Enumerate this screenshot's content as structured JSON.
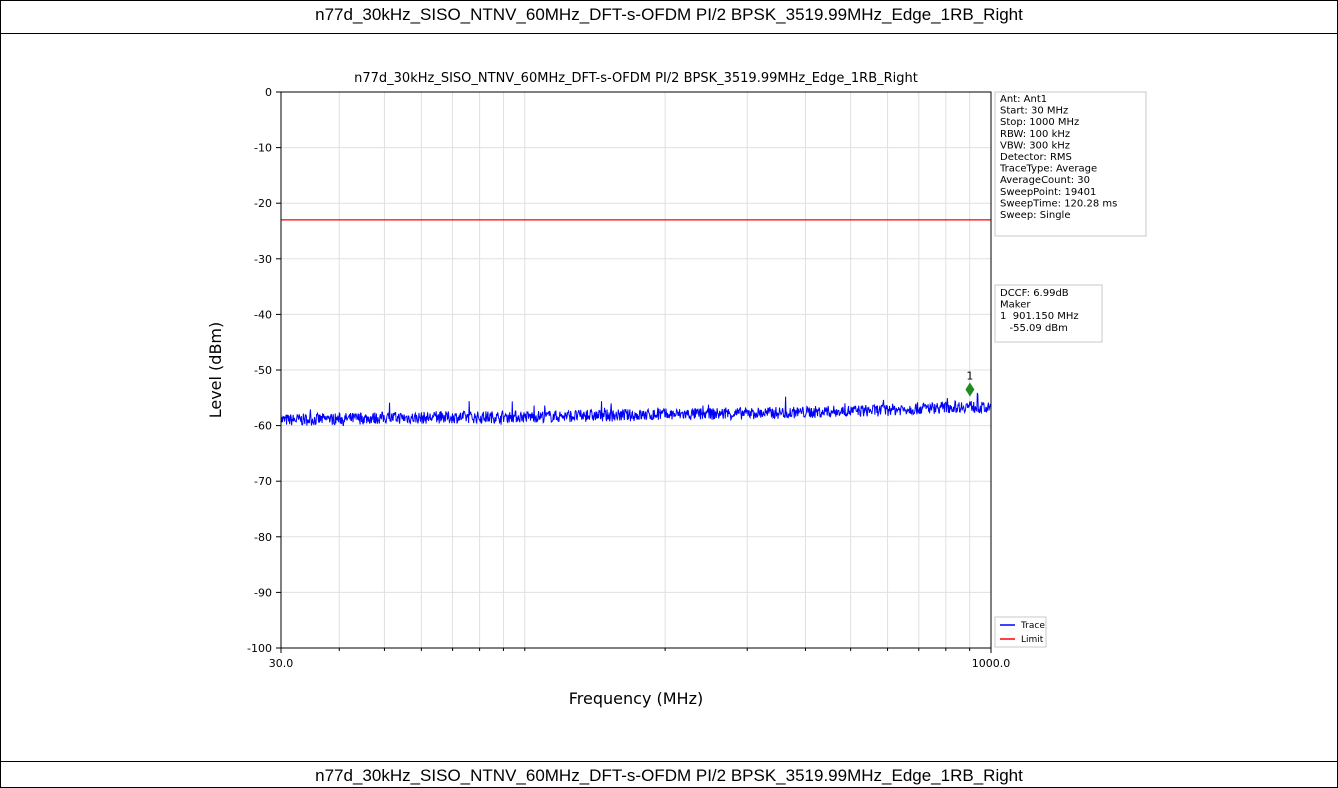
{
  "page": {
    "caption_top": "n77d_30kHz_SISO_NTNV_60MHz_DFT-s-OFDM PI/2 BPSK_3519.99MHz_Edge_1RB_Right",
    "caption_bottom": "n77d_30kHz_SISO_NTNV_60MHz_DFT-s-OFDM PI/2 BPSK_3519.99MHz_Edge_1RB_Right"
  },
  "chart_data": {
    "type": "line",
    "title": "n77d_30kHz_SISO_NTNV_60MHz_DFT-s-OFDM PI/2 BPSK_3519.99MHz_Edge_1RB_Right",
    "xlabel": "Frequency (MHz)",
    "ylabel": "Level (dBm)",
    "xscale": "log",
    "xlim": [
      30.0,
      1000.0
    ],
    "ylim": [
      -100,
      0
    ],
    "x_tick_labels": [
      "30.0",
      "1000.0"
    ],
    "y_ticks": [
      0,
      -10,
      -20,
      -30,
      -40,
      -50,
      -60,
      -70,
      -80,
      -90,
      -100
    ],
    "grid": true,
    "series": [
      {
        "name": "Trace",
        "color": "#0000ff",
        "x": [
          30,
          35,
          40,
          45,
          50,
          60,
          70,
          80,
          90,
          100,
          120,
          150,
          180,
          200,
          250,
          300,
          350,
          400,
          450,
          500,
          550,
          600,
          650,
          700,
          750,
          800,
          850,
          901.15,
          950,
          1000
        ],
        "y": [
          -59.0,
          -58.9,
          -58.8,
          -58.7,
          -58.6,
          -58.6,
          -58.5,
          -58.5,
          -58.4,
          -58.4,
          -58.3,
          -58.2,
          -58.1,
          -58.0,
          -57.9,
          -57.8,
          -57.7,
          -57.6,
          -57.5,
          -57.4,
          -57.3,
          -57.2,
          -57.0,
          -56.9,
          -56.8,
          -56.7,
          -56.6,
          -56.5,
          -56.8,
          -57.0
        ]
      },
      {
        "name": "Limit",
        "color": "#ff0000",
        "x": [
          30.0,
          1000.0
        ],
        "y": [
          -23.0,
          -23.0
        ]
      }
    ],
    "marker": {
      "label": "1",
      "x": 901.15,
      "y": -53.5,
      "color": "#228b22"
    },
    "info_box": [
      "Ant: Ant1",
      "Start: 30 MHz",
      "Stop: 1000 MHz",
      "RBW: 100 kHz",
      "VBW: 300 kHz",
      "Detector: RMS",
      "TraceType: Average",
      "AverageCount: 30",
      "SweepPoint: 19401",
      "SweepTime: 120.28 ms",
      "Sweep: Single"
    ],
    "marker_box": [
      "DCCF: 6.99dB",
      "Maker",
      "1  901.150 MHz",
      "   -55.09 dBm"
    ],
    "legend": {
      "placement": "bottom-right",
      "entries": [
        "Trace",
        "Limit"
      ]
    }
  }
}
